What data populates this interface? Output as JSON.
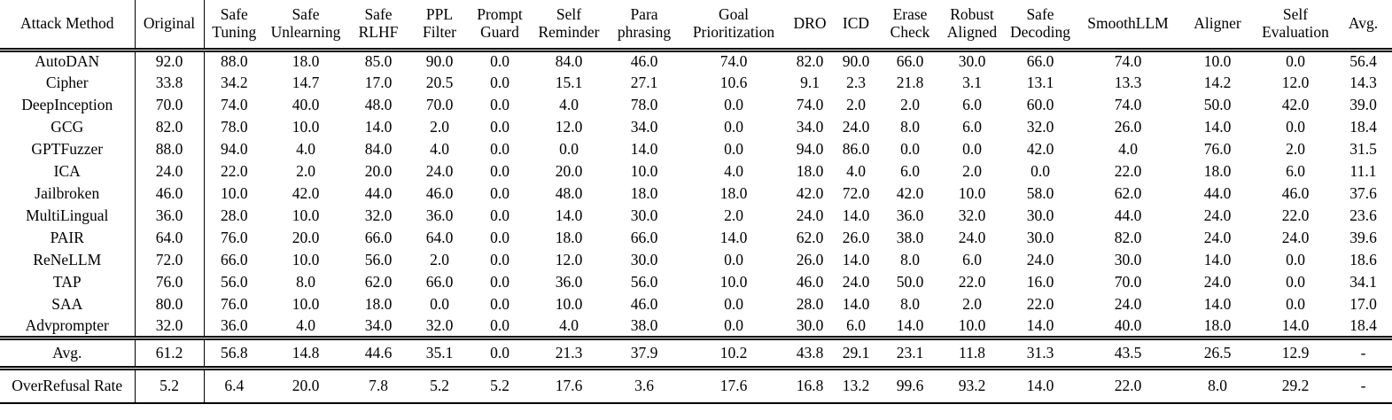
{
  "table": {
    "columns": [
      "Attack Method",
      "Original",
      "Safe\nTuning",
      "Safe\nUnlearning",
      "Safe\nRLHF",
      "PPL\nFilter",
      "Prompt\nGuard",
      "Self\nReminder",
      "Para\nphrasing",
      "Goal\nPrioritization",
      "DRO",
      "ICD",
      "Erase\nCheck",
      "Robust\nAligned",
      "Safe\nDecoding",
      "SmoothLLM",
      "Aligner",
      "Self\nEvaluation",
      "Avg."
    ],
    "rows": [
      {
        "attack": "AutoDAN",
        "values": [
          "92.0",
          "88.0",
          "18.0",
          "85.0",
          "90.0",
          "0.0",
          "84.0",
          "46.0",
          "74.0",
          "82.0",
          "90.0",
          "66.0",
          "30.0",
          "66.0",
          "74.0",
          "10.0",
          "0.0",
          "56.4"
        ]
      },
      {
        "attack": "Cipher",
        "values": [
          "33.8",
          "34.2",
          "14.7",
          "17.0",
          "20.5",
          "0.0",
          "15.1",
          "27.1",
          "10.6",
          "9.1",
          "2.3",
          "21.8",
          "3.1",
          "13.1",
          "13.3",
          "14.2",
          "12.0",
          "14.3"
        ]
      },
      {
        "attack": "DeepInception",
        "values": [
          "70.0",
          "74.0",
          "40.0",
          "48.0",
          "70.0",
          "0.0",
          "4.0",
          "78.0",
          "0.0",
          "74.0",
          "2.0",
          "2.0",
          "6.0",
          "60.0",
          "74.0",
          "50.0",
          "42.0",
          "39.0"
        ]
      },
      {
        "attack": "GCG",
        "values": [
          "82.0",
          "78.0",
          "10.0",
          "14.0",
          "2.0",
          "0.0",
          "12.0",
          "34.0",
          "0.0",
          "34.0",
          "24.0",
          "8.0",
          "6.0",
          "32.0",
          "26.0",
          "14.0",
          "0.0",
          "18.4"
        ]
      },
      {
        "attack": "GPTFuzzer",
        "values": [
          "88.0",
          "94.0",
          "4.0",
          "84.0",
          "4.0",
          "0.0",
          "0.0",
          "14.0",
          "0.0",
          "94.0",
          "86.0",
          "0.0",
          "0.0",
          "42.0",
          "4.0",
          "76.0",
          "2.0",
          "31.5"
        ]
      },
      {
        "attack": "ICA",
        "values": [
          "24.0",
          "22.0",
          "2.0",
          "20.0",
          "24.0",
          "0.0",
          "20.0",
          "10.0",
          "4.0",
          "18.0",
          "4.0",
          "6.0",
          "2.0",
          "0.0",
          "22.0",
          "18.0",
          "6.0",
          "11.1"
        ]
      },
      {
        "attack": "Jailbroken",
        "values": [
          "46.0",
          "10.0",
          "42.0",
          "44.0",
          "46.0",
          "0.0",
          "48.0",
          "18.0",
          "18.0",
          "42.0",
          "72.0",
          "42.0",
          "10.0",
          "58.0",
          "62.0",
          "44.0",
          "46.0",
          "37.6"
        ]
      },
      {
        "attack": "MultiLingual",
        "values": [
          "36.0",
          "28.0",
          "10.0",
          "32.0",
          "36.0",
          "0.0",
          "14.0",
          "30.0",
          "2.0",
          "24.0",
          "14.0",
          "36.0",
          "32.0",
          "30.0",
          "44.0",
          "24.0",
          "22.0",
          "23.6"
        ]
      },
      {
        "attack": "PAIR",
        "values": [
          "64.0",
          "76.0",
          "20.0",
          "66.0",
          "64.0",
          "0.0",
          "18.0",
          "66.0",
          "14.0",
          "62.0",
          "26.0",
          "38.0",
          "24.0",
          "30.0",
          "82.0",
          "24.0",
          "24.0",
          "39.6"
        ]
      },
      {
        "attack": "ReNeLLM",
        "values": [
          "72.0",
          "66.0",
          "10.0",
          "56.0",
          "2.0",
          "0.0",
          "12.0",
          "30.0",
          "0.0",
          "26.0",
          "14.0",
          "8.0",
          "6.0",
          "24.0",
          "30.0",
          "14.0",
          "0.0",
          "18.6"
        ]
      },
      {
        "attack": "TAP",
        "values": [
          "76.0",
          "56.0",
          "8.0",
          "62.0",
          "66.0",
          "0.0",
          "36.0",
          "56.0",
          "10.0",
          "46.0",
          "24.0",
          "50.0",
          "22.0",
          "16.0",
          "70.0",
          "24.0",
          "0.0",
          "34.1"
        ]
      },
      {
        "attack": "SAA",
        "values": [
          "80.0",
          "76.0",
          "10.0",
          "18.0",
          "0.0",
          "0.0",
          "10.0",
          "46.0",
          "0.0",
          "28.0",
          "14.0",
          "8.0",
          "2.0",
          "22.0",
          "24.0",
          "14.0",
          "0.0",
          "17.0"
        ]
      },
      {
        "attack": "Advprompter",
        "values": [
          "32.0",
          "36.0",
          "4.0",
          "34.0",
          "32.0",
          "0.0",
          "4.0",
          "38.0",
          "0.0",
          "30.0",
          "6.0",
          "14.0",
          "10.0",
          "14.0",
          "40.0",
          "18.0",
          "14.0",
          "18.4"
        ]
      }
    ],
    "avg_row": {
      "label": "Avg.",
      "values": [
        "61.2",
        "56.8",
        "14.8",
        "44.6",
        "35.1",
        "0.0",
        "21.3",
        "37.9",
        "10.2",
        "43.8",
        "29.1",
        "23.1",
        "11.8",
        "31.3",
        "43.5",
        "26.5",
        "12.9",
        "-"
      ]
    },
    "overrefusal_row": {
      "label": "OverRefusal Rate",
      "values": [
        "5.2",
        "6.4",
        "20.0",
        "7.8",
        "5.2",
        "5.2",
        "17.6",
        "3.6",
        "17.6",
        "16.8",
        "13.2",
        "99.6",
        "93.2",
        "14.0",
        "22.0",
        "8.0",
        "29.2",
        "-"
      ]
    }
  },
  "colors": {
    "text": "#000000",
    "rule": "#000000",
    "background": "#ffffff"
  }
}
